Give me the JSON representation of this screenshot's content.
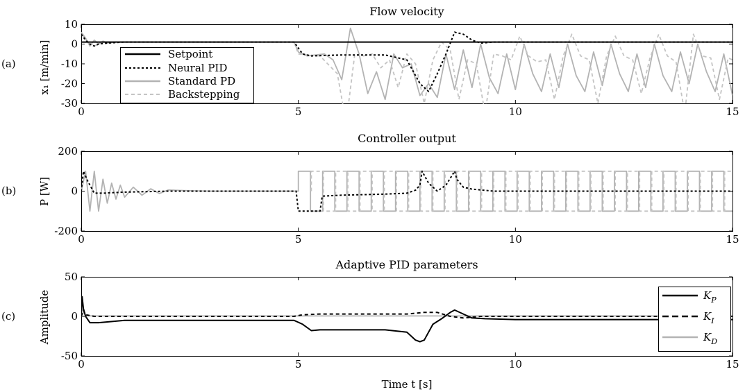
{
  "chart_data": [
    {
      "type": "line",
      "panel_label": "(a)",
      "title": "Flow velocity",
      "ylabel": "x₁ [m/min]",
      "xlim": [
        0,
        15
      ],
      "ylim": [
        -30,
        10
      ],
      "xticks": [
        0,
        5,
        10,
        15
      ],
      "yticks": [
        10,
        0,
        -10,
        -20,
        -30
      ],
      "legend": {
        "position": "left"
      },
      "series": [
        {
          "name": "Setpoint",
          "color": "#000000",
          "dash": "solid",
          "x": [
            0,
            15
          ],
          "y": [
            1,
            1
          ]
        },
        {
          "name": "Neural PID",
          "color": "#000000",
          "dash": "dotted",
          "x": [
            0,
            0.1,
            0.2,
            0.3,
            0.4,
            0.6,
            1.0,
            2.0,
            4.0,
            4.9,
            5.1,
            5.3,
            6.0,
            7.0,
            7.5,
            7.8,
            8.0,
            8.2,
            8.4,
            8.6,
            8.8,
            9.0,
            9.2,
            9.5,
            10.0,
            15.0
          ],
          "y": [
            5,
            2,
            0,
            -1,
            0,
            0.5,
            1,
            1,
            1,
            1,
            -5,
            -6,
            -5.5,
            -5.5,
            -8,
            -20,
            -24,
            -15,
            -5,
            6,
            5,
            2,
            0.5,
            1,
            1,
            1
          ]
        },
        {
          "name": "Standard PD",
          "color": "#b3b3b3",
          "dash": "solid",
          "x": [
            0,
            0.1,
            0.2,
            0.3,
            0.4,
            0.5,
            0.6,
            0.8,
            1.0,
            2.0,
            4.9,
            5.0,
            5.2,
            5.6,
            5.8,
            6.0,
            6.2,
            6.4,
            6.6,
            6.8,
            7.0,
            7.2,
            7.4,
            7.6,
            7.8,
            8.0,
            8.2,
            8.4,
            8.6,
            8.8,
            9.0,
            9.2,
            9.4,
            9.6,
            9.8,
            10.0,
            10.2,
            10.4,
            10.6,
            10.8,
            11.0,
            11.2,
            11.4,
            11.6,
            11.8,
            12.0,
            12.2,
            12.4,
            12.6,
            12.8,
            13.0,
            13.2,
            13.4,
            13.6,
            13.8,
            14.0,
            14.2,
            14.4,
            14.6,
            14.8,
            15.0
          ],
          "y": [
            6,
            3,
            -1,
            2,
            0,
            1.5,
            0.5,
            1,
            1,
            1,
            1,
            -4,
            -6,
            -5,
            -8,
            -18,
            8,
            -5,
            -25,
            -14,
            -28,
            -5,
            -12,
            -10,
            -26,
            -20,
            -27,
            -5,
            -23,
            -3,
            -22,
            0,
            -17,
            -25,
            -5,
            -23,
            0,
            -15,
            -24,
            -5,
            -22,
            0,
            -16,
            -24,
            -4,
            -21,
            0,
            -15,
            -24,
            -5,
            -22,
            0,
            -16,
            -24,
            -4,
            -20,
            0,
            -14,
            -24,
            -5,
            -26
          ]
        },
        {
          "name": "Backstepping",
          "color": "#c4c4c4",
          "dash": "dashed",
          "x": [
            0,
            0.15,
            0.3,
            0.5,
            0.8,
            2.0,
            4.9,
            5.0,
            5.5,
            5.9,
            6.1,
            6.3,
            6.5,
            6.7,
            6.9,
            7.1,
            7.3,
            7.5,
            7.7,
            7.9,
            8.1,
            8.3,
            8.5,
            8.7,
            8.9,
            9.1,
            9.3,
            9.5,
            9.7,
            9.9,
            10.1,
            10.3,
            10.5,
            10.7,
            10.9,
            11.1,
            11.3,
            11.5,
            11.7,
            11.9,
            12.1,
            12.3,
            12.5,
            12.7,
            12.9,
            13.1,
            13.3,
            13.5,
            13.7,
            13.9,
            14.1,
            14.3,
            14.5,
            14.7,
            14.9,
            15.0
          ],
          "y": [
            5,
            1,
            -1,
            1,
            1,
            1,
            1,
            -5,
            -6,
            -15,
            -40,
            -5,
            -6,
            -5,
            -12,
            -8,
            -22,
            -5,
            -10,
            -30,
            -8,
            1,
            -3,
            -28,
            -8,
            -10,
            -35,
            -5,
            -6,
            -8,
            4,
            -6,
            -9,
            -8,
            -28,
            -6,
            5,
            -6,
            -8,
            -30,
            -6,
            4,
            -6,
            -8,
            -25,
            -7,
            5,
            -6,
            -9,
            -35,
            5,
            -6,
            -7,
            -28,
            -7,
            -8
          ]
        }
      ]
    },
    {
      "type": "line",
      "panel_label": "(b)",
      "title": "Controller output",
      "ylabel": "P [W]",
      "xlim": [
        0,
        15
      ],
      "ylim": [
        -200,
        200
      ],
      "xticks": [
        0,
        5,
        10,
        15
      ],
      "yticks": [
        200,
        0,
        -200
      ],
      "series": [
        {
          "name": "Neural PID",
          "color": "#000000",
          "dash": "dotted",
          "x": [
            0,
            0.05,
            0.15,
            0.3,
            0.5,
            1.0,
            2.0,
            4.95,
            5.0,
            5.5,
            5.55,
            6.0,
            7.0,
            7.5,
            7.7,
            7.8,
            7.85,
            8.0,
            8.2,
            8.4,
            8.6,
            8.65,
            8.8,
            9.0,
            9.5,
            10.0,
            15.0
          ],
          "y": [
            0,
            100,
            50,
            -10,
            -10,
            -5,
            0,
            0,
            -100,
            -100,
            -25,
            -20,
            -15,
            -10,
            5,
            30,
            100,
            40,
            0,
            30,
            100,
            60,
            20,
            10,
            0,
            0,
            0
          ]
        },
        {
          "name": "Standard PD",
          "color": "#b3b3b3",
          "dash": "square",
          "period": 0.56,
          "amplitude": 100,
          "t_start": 5.0,
          "t_end": 15.0,
          "transient": {
            "x": [
              0,
              0.1,
              0.2,
              0.3,
              0.4,
              0.5,
              0.6,
              0.7,
              0.8,
              0.9,
              1.0,
              1.2,
              1.4,
              1.6,
              1.8,
              2.0,
              2.5,
              3.0
            ],
            "y": [
              0,
              100,
              -100,
              100,
              -100,
              60,
              -60,
              40,
              -40,
              30,
              -30,
              20,
              -20,
              12,
              -12,
              6,
              2,
              0
            ]
          }
        },
        {
          "name": "Backstepping",
          "color": "#c4c4c4",
          "dash": "square-dashed",
          "period": 0.56,
          "amplitude": 100,
          "t_start": 5.3,
          "t_end": 15.0
        }
      ]
    },
    {
      "type": "line",
      "panel_label": "(c)",
      "title": "Adaptive PID parameters",
      "ylabel": "Amplitude",
      "xlabel": "Time t [s]",
      "xlim": [
        0,
        15
      ],
      "ylim": [
        -50,
        50
      ],
      "xticks": [
        0,
        5,
        10,
        15
      ],
      "yticks": [
        50,
        0,
        -50
      ],
      "legend": {
        "position": "right"
      },
      "series": [
        {
          "name": "K",
          "sub": "P",
          "color": "#000000",
          "dash": "solid",
          "x": [
            0,
            0.02,
            0.05,
            0.1,
            0.2,
            0.4,
            1.0,
            4.9,
            5.1,
            5.3,
            5.5,
            6.0,
            7.0,
            7.5,
            7.7,
            7.8,
            7.9,
            8.1,
            8.3,
            8.5,
            8.6,
            8.8,
            9.0,
            9.3,
            10.0,
            11.0,
            15.0
          ],
          "y": [
            0,
            25,
            10,
            0,
            -8,
            -8,
            -5,
            -5,
            -10,
            -18,
            -17,
            -17,
            -17,
            -20,
            -30,
            -32,
            -30,
            -10,
            -3,
            5,
            8,
            3,
            -2,
            -3,
            -4,
            -4,
            -4
          ]
        },
        {
          "name": "K",
          "sub": "I",
          "color": "#000000",
          "dash": "dashed",
          "x": [
            0,
            0.05,
            0.1,
            0.3,
            1.0,
            4.9,
            5.1,
            5.5,
            7.0,
            7.5,
            7.9,
            8.2,
            8.5,
            8.8,
            9.2,
            10.0,
            15.0
          ],
          "y": [
            0,
            8,
            2,
            0,
            0,
            0,
            2,
            3,
            3,
            3,
            5,
            5,
            0,
            -2,
            0,
            0,
            0
          ]
        },
        {
          "name": "K",
          "sub": "D",
          "color": "#b3b3b3",
          "dash": "solid",
          "x": [
            0,
            0.05,
            0.1,
            0.3,
            1.0,
            15.0
          ],
          "y": [
            0,
            5,
            1,
            0.5,
            0.5,
            0.5
          ]
        }
      ]
    }
  ]
}
